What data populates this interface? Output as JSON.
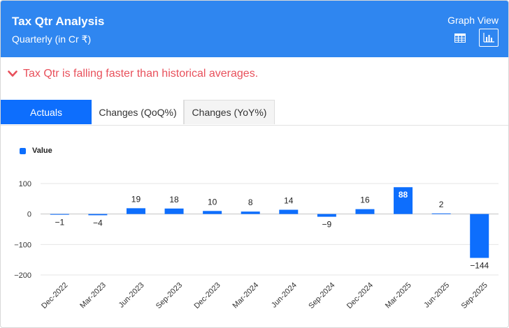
{
  "header": {
    "title": "Tax Qtr Analysis",
    "subtitle": "Quarterly (in Cr ₹)",
    "graph_view_label": "Graph View",
    "icons": [
      "table-icon",
      "bar-chart-icon"
    ]
  },
  "alert": {
    "text": "Tax Qtr is falling faster than historical averages.",
    "icon": "chevron-down-icon"
  },
  "tabs": [
    {
      "label": "Actuals",
      "active": true
    },
    {
      "label": "Changes (QoQ%)",
      "active": false
    },
    {
      "label": "Changes (YoY%)",
      "active": false
    }
  ],
  "colors": {
    "header": "#2f86f0",
    "bar": "#0d6efd",
    "alert": "#e8505b"
  },
  "chart_data": {
    "type": "bar",
    "categories": [
      "Dec-2022",
      "Mar-2023",
      "Jun-2023",
      "Sep-2023",
      "Dec-2023",
      "Mar-2024",
      "Jun-2024",
      "Sep-2024",
      "Dec-2024",
      "Mar-2025",
      "Jun-2025",
      "Sep-2025"
    ],
    "series": [
      {
        "name": "Value",
        "values": [
          -1,
          -4,
          19,
          18,
          10,
          8,
          14,
          -9,
          16,
          88,
          2,
          -144
        ]
      }
    ],
    "data_labels": [
      "−1",
      "−4",
      "19",
      "18",
      "10",
      "8",
      "14",
      "−9",
      "16",
      "88",
      "2",
      "−144"
    ],
    "yticks": [
      100,
      0,
      -100,
      -200
    ],
    "ytick_labels": [
      "100",
      "0",
      "−100",
      "−200"
    ],
    "ylim": [
      -200,
      100
    ],
    "grid": true,
    "legend": "top-left"
  }
}
